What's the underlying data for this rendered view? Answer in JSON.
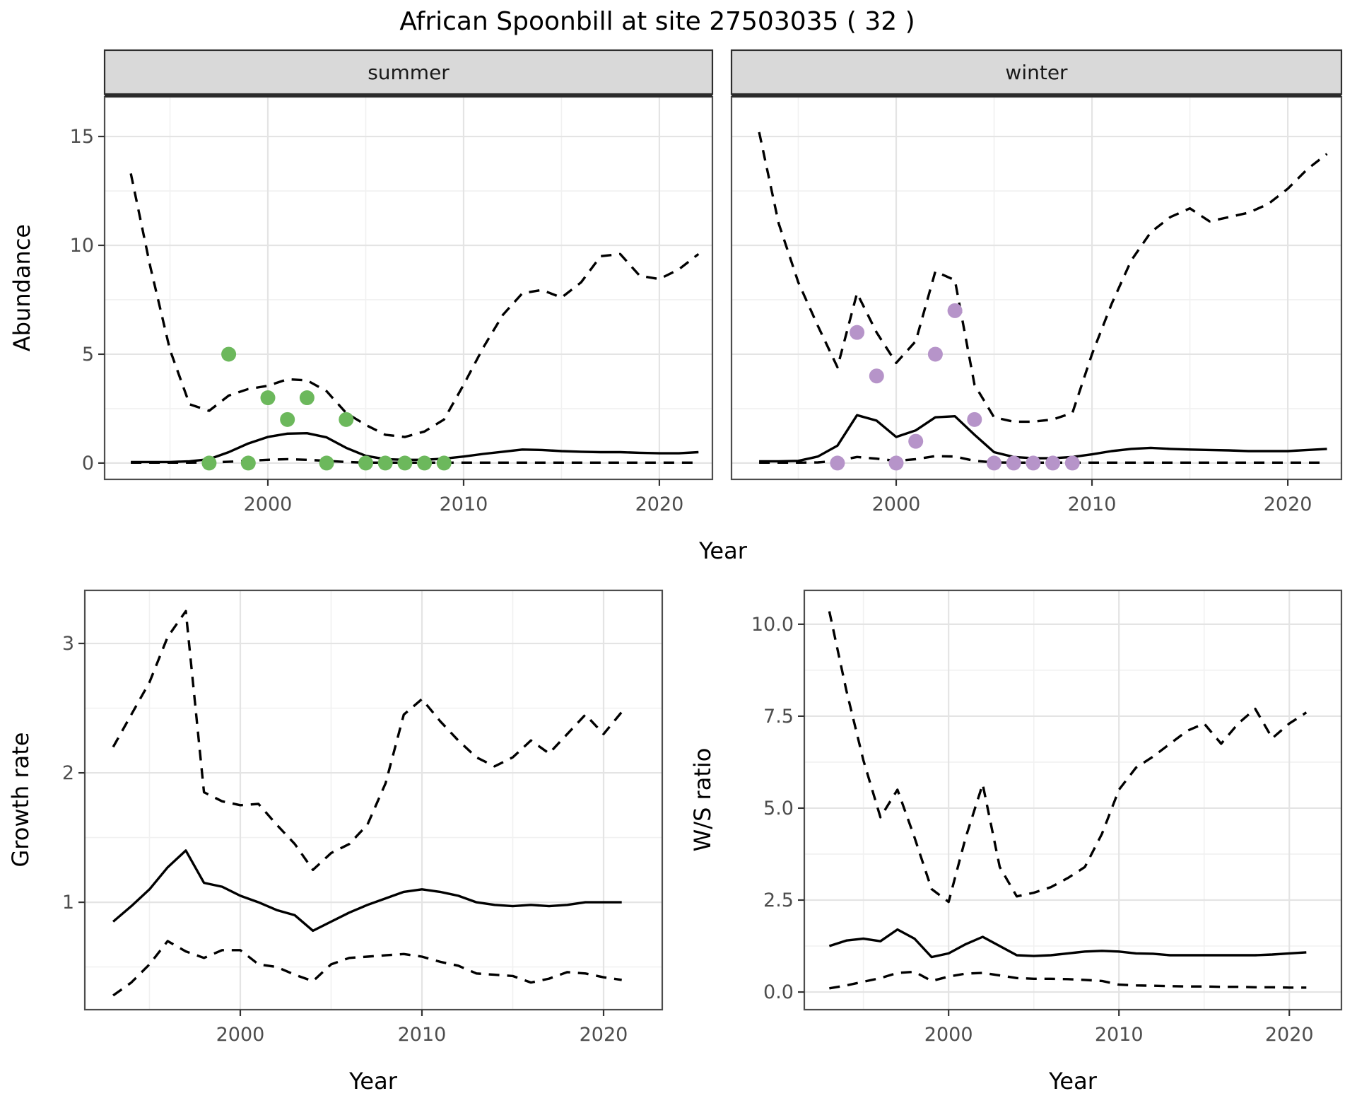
{
  "title": "African Spoonbill at site 27503035 ( 32 )",
  "colors": {
    "background": "#ffffff",
    "line": "#000000",
    "summer_point": "#6cb85c",
    "winter_point": "#b694c9",
    "strip_bg": "#d9d9d9",
    "strip_border": "#2e2e2e",
    "panel_border": "#4d4d4d",
    "grid_major": "#e4e4e4",
    "grid_minor": "#f1f1f1",
    "tick_mark": "#333333",
    "tick_text": "#4d4d4d",
    "facet_text": "#1a1a1a"
  },
  "shared_labels": {
    "top_x_label": "Year",
    "top_y_label": "Abundance"
  },
  "layout_hints": {
    "grid": "on",
    "legend": "none",
    "facets": [
      "summer",
      "winter"
    ],
    "rows": 2
  },
  "chart_data": [
    {
      "id": "abundance-summer",
      "type": "line",
      "facet_label": "summer",
      "x_label": "Year",
      "y_label": "Abundance",
      "xlim": [
        1991.66,
        2022.71
      ],
      "ylim": [
        -0.75,
        16.82
      ],
      "x_tick_values": [
        2000,
        2010,
        2020
      ],
      "x_tick_labels": [
        "2000",
        "2010",
        "2020"
      ],
      "x_minor": [
        1995,
        2005,
        2015
      ],
      "y_tick_values": [
        0,
        5,
        10,
        15
      ],
      "y_tick_labels": [
        "0",
        "5",
        "10",
        "15"
      ],
      "y_minor": [
        2.5,
        7.5,
        12.5
      ],
      "years": [
        1993,
        1994,
        1995,
        1996,
        1997,
        1998,
        1999,
        2000,
        2001,
        2002,
        2003,
        2004,
        2005,
        2006,
        2007,
        2008,
        2009,
        2010,
        2011,
        2012,
        2013,
        2014,
        2015,
        2016,
        2017,
        2018,
        2019,
        2020,
        2021,
        2022
      ],
      "series": [
        {
          "name": "upper-ci",
          "style": "dashed",
          "values": [
            13.3,
            9.0,
            5.2,
            2.7,
            2.4,
            3.1,
            3.4,
            3.55,
            3.85,
            3.8,
            3.3,
            2.3,
            1.75,
            1.3,
            1.2,
            1.45,
            2.0,
            3.6,
            5.3,
            6.8,
            7.8,
            7.95,
            7.6,
            8.3,
            9.5,
            9.6,
            8.6,
            8.45,
            8.9,
            9.6
          ]
        },
        {
          "name": "median",
          "style": "solid",
          "values": [
            0.05,
            0.05,
            0.05,
            0.08,
            0.18,
            0.5,
            0.9,
            1.2,
            1.35,
            1.37,
            1.18,
            0.7,
            0.33,
            0.18,
            0.15,
            0.15,
            0.2,
            0.3,
            0.42,
            0.52,
            0.62,
            0.6,
            0.55,
            0.52,
            0.5,
            0.5,
            0.47,
            0.45,
            0.45,
            0.5
          ]
        },
        {
          "name": "lower-ci",
          "style": "dashed",
          "values": [
            0.02,
            0.02,
            0.02,
            0.02,
            0.03,
            0.06,
            0.1,
            0.15,
            0.18,
            0.15,
            0.1,
            0.05,
            0.02,
            0.02,
            0.02,
            0.02,
            0.02,
            0.02,
            0.02,
            0.02,
            0.02,
            0.02,
            0.02,
            0.02,
            0.02,
            0.02,
            0.02,
            0.02,
            0.02,
            0.02
          ]
        }
      ],
      "points": {
        "name": "summer-observations",
        "color_key": "summer_point",
        "data": [
          [
            1997,
            0
          ],
          [
            1998,
            5
          ],
          [
            1999,
            0
          ],
          [
            2000,
            3
          ],
          [
            2001,
            2
          ],
          [
            2002,
            3
          ],
          [
            2003,
            0
          ],
          [
            2004,
            2
          ],
          [
            2005,
            0
          ],
          [
            2006,
            0
          ],
          [
            2007,
            0
          ],
          [
            2008,
            0
          ],
          [
            2009,
            0
          ]
        ]
      }
    },
    {
      "id": "abundance-winter",
      "type": "line",
      "facet_label": "winter",
      "x_label": "Year",
      "y_label": "Abundance",
      "xlim": [
        1991.59,
        2022.74
      ],
      "ylim": [
        -0.75,
        16.82
      ],
      "x_tick_values": [
        2000,
        2010,
        2020
      ],
      "x_tick_labels": [
        "2000",
        "2010",
        "2020"
      ],
      "x_minor": [
        1995,
        2005,
        2015
      ],
      "y_tick_values": [
        0,
        5,
        10,
        15
      ],
      "y_tick_labels": [],
      "y_minor": [
        2.5,
        7.5,
        12.5
      ],
      "years": [
        1993,
        1994,
        1995,
        1996,
        1997,
        1998,
        1999,
        2000,
        2001,
        2002,
        2003,
        2004,
        2005,
        2006,
        2007,
        2008,
        2009,
        2010,
        2011,
        2012,
        2013,
        2014,
        2015,
        2016,
        2017,
        2018,
        2019,
        2020,
        2021,
        2022
      ],
      "series": [
        {
          "name": "upper-ci",
          "style": "dashed",
          "values": [
            15.2,
            11.0,
            8.3,
            6.3,
            4.4,
            7.8,
            6.0,
            4.6,
            5.6,
            8.8,
            8.4,
            3.6,
            2.1,
            1.9,
            1.9,
            2.0,
            2.3,
            5.0,
            7.3,
            9.3,
            10.6,
            11.3,
            11.7,
            11.1,
            11.3,
            11.5,
            11.9,
            12.6,
            13.5,
            14.2
          ]
        },
        {
          "name": "median",
          "style": "solid",
          "values": [
            0.08,
            0.08,
            0.1,
            0.3,
            0.8,
            2.2,
            1.95,
            1.2,
            1.5,
            2.1,
            2.15,
            1.3,
            0.5,
            0.28,
            0.22,
            0.22,
            0.28,
            0.4,
            0.55,
            0.65,
            0.7,
            0.65,
            0.62,
            0.6,
            0.58,
            0.55,
            0.55,
            0.55,
            0.6,
            0.65
          ]
        },
        {
          "name": "lower-ci",
          "style": "dashed",
          "values": [
            0.02,
            0.02,
            0.02,
            0.03,
            0.1,
            0.28,
            0.2,
            0.1,
            0.18,
            0.32,
            0.3,
            0.1,
            0.03,
            0.02,
            0.02,
            0.02,
            0.02,
            0.02,
            0.02,
            0.02,
            0.02,
            0.02,
            0.02,
            0.02,
            0.02,
            0.02,
            0.02,
            0.02,
            0.02,
            0.02
          ]
        }
      ],
      "points": {
        "name": "winter-observations",
        "color_key": "winter_point",
        "data": [
          [
            1997,
            0
          ],
          [
            1998,
            6
          ],
          [
            1999,
            4
          ],
          [
            2000,
            0
          ],
          [
            2001,
            1
          ],
          [
            2002,
            5
          ],
          [
            2003,
            7
          ],
          [
            2004,
            2
          ],
          [
            2005,
            0
          ],
          [
            2006,
            0
          ],
          [
            2007,
            0
          ],
          [
            2008,
            0
          ],
          [
            2009,
            0
          ]
        ]
      }
    },
    {
      "id": "growth-rate",
      "type": "line",
      "facet_label": null,
      "x_label": "Year",
      "y_label": "Growth rate",
      "xlim": [
        1991.44,
        2023.23
      ],
      "ylim": [
        0.17,
        3.41
      ],
      "x_tick_values": [
        2000,
        2010,
        2020
      ],
      "x_tick_labels": [
        "2000",
        "2010",
        "2020"
      ],
      "x_minor": [
        1995,
        2005,
        2015
      ],
      "y_tick_values": [
        1,
        2,
        3
      ],
      "y_tick_labels": [
        "1",
        "2",
        "3"
      ],
      "y_minor": [
        0.5,
        1.5,
        2.5
      ],
      "years": [
        1993,
        1994,
        1995,
        1996,
        1997,
        1998,
        1999,
        2000,
        2001,
        2002,
        2003,
        2004,
        2005,
        2006,
        2007,
        2008,
        2009,
        2010,
        2011,
        2012,
        2013,
        2014,
        2015,
        2016,
        2017,
        2018,
        2019,
        2020,
        2021
      ],
      "series": [
        {
          "name": "upper-ci",
          "style": "dashed",
          "values": [
            2.2,
            2.45,
            2.7,
            3.05,
            3.25,
            1.85,
            1.78,
            1.75,
            1.76,
            1.6,
            1.45,
            1.25,
            1.38,
            1.45,
            1.6,
            1.92,
            2.45,
            2.57,
            2.4,
            2.25,
            2.12,
            2.05,
            2.12,
            2.25,
            2.15,
            2.3,
            2.45,
            2.3,
            2.47
          ]
        },
        {
          "name": "median",
          "style": "solid",
          "values": [
            0.85,
            0.97,
            1.1,
            1.27,
            1.4,
            1.15,
            1.12,
            1.05,
            1.0,
            0.94,
            0.9,
            0.78,
            0.85,
            0.92,
            0.98,
            1.03,
            1.08,
            1.1,
            1.08,
            1.05,
            1.0,
            0.98,
            0.97,
            0.98,
            0.97,
            0.98,
            1.0,
            1.0,
            1.0
          ]
        },
        {
          "name": "lower-ci",
          "style": "dashed",
          "values": [
            0.28,
            0.38,
            0.52,
            0.7,
            0.62,
            0.57,
            0.63,
            0.63,
            0.52,
            0.5,
            0.44,
            0.39,
            0.52,
            0.57,
            0.58,
            0.59,
            0.6,
            0.58,
            0.54,
            0.51,
            0.45,
            0.44,
            0.43,
            0.38,
            0.41,
            0.46,
            0.45,
            0.42,
            0.4
          ]
        }
      ],
      "points": null
    },
    {
      "id": "ws-ratio",
      "type": "line",
      "facet_label": null,
      "x_label": "Year",
      "y_label": "W/S ratio",
      "xlim": [
        1991.53,
        2023.06
      ],
      "ylim": [
        -0.48,
        10.92
      ],
      "x_tick_values": [
        2000,
        2010,
        2020
      ],
      "x_tick_labels": [
        "2000",
        "2010",
        "2020"
      ],
      "x_minor": [
        1995,
        2005,
        2015
      ],
      "y_tick_values": [
        0,
        2.5,
        5,
        7.5,
        10
      ],
      "y_tick_labels": [
        "0.0",
        "2.5",
        "5.0",
        "7.5",
        "10.0"
      ],
      "y_minor": [
        1.25,
        3.75,
        6.25,
        8.75
      ],
      "years": [
        1993,
        1994,
        1995,
        1996,
        1997,
        1998,
        1999,
        2000,
        2001,
        2002,
        2003,
        2004,
        2005,
        2006,
        2007,
        2008,
        2009,
        2010,
        2011,
        2012,
        2013,
        2014,
        2015,
        2016,
        2017,
        2018,
        2019,
        2020,
        2021
      ],
      "series": [
        {
          "name": "upper-ci",
          "style": "dashed",
          "values": [
            10.35,
            8.2,
            6.3,
            4.75,
            5.5,
            4.2,
            2.8,
            2.45,
            4.2,
            5.65,
            3.4,
            2.6,
            2.7,
            2.85,
            3.1,
            3.4,
            4.3,
            5.5,
            6.1,
            6.4,
            6.75,
            7.1,
            7.3,
            6.75,
            7.3,
            7.7,
            6.9,
            7.3,
            7.6
          ]
        },
        {
          "name": "median",
          "style": "solid",
          "values": [
            1.25,
            1.4,
            1.45,
            1.38,
            1.7,
            1.45,
            0.95,
            1.05,
            1.3,
            1.5,
            1.25,
            1.0,
            0.98,
            1.0,
            1.05,
            1.1,
            1.12,
            1.1,
            1.05,
            1.04,
            1.0,
            1.0,
            1.0,
            1.0,
            1.0,
            1.0,
            1.02,
            1.05,
            1.08
          ]
        },
        {
          "name": "lower-ci",
          "style": "dashed",
          "values": [
            0.1,
            0.18,
            0.28,
            0.38,
            0.52,
            0.55,
            0.3,
            0.42,
            0.5,
            0.52,
            0.45,
            0.38,
            0.36,
            0.36,
            0.35,
            0.33,
            0.3,
            0.2,
            0.18,
            0.17,
            0.16,
            0.15,
            0.15,
            0.14,
            0.14,
            0.13,
            0.13,
            0.12,
            0.12
          ]
        }
      ],
      "points": null
    }
  ]
}
